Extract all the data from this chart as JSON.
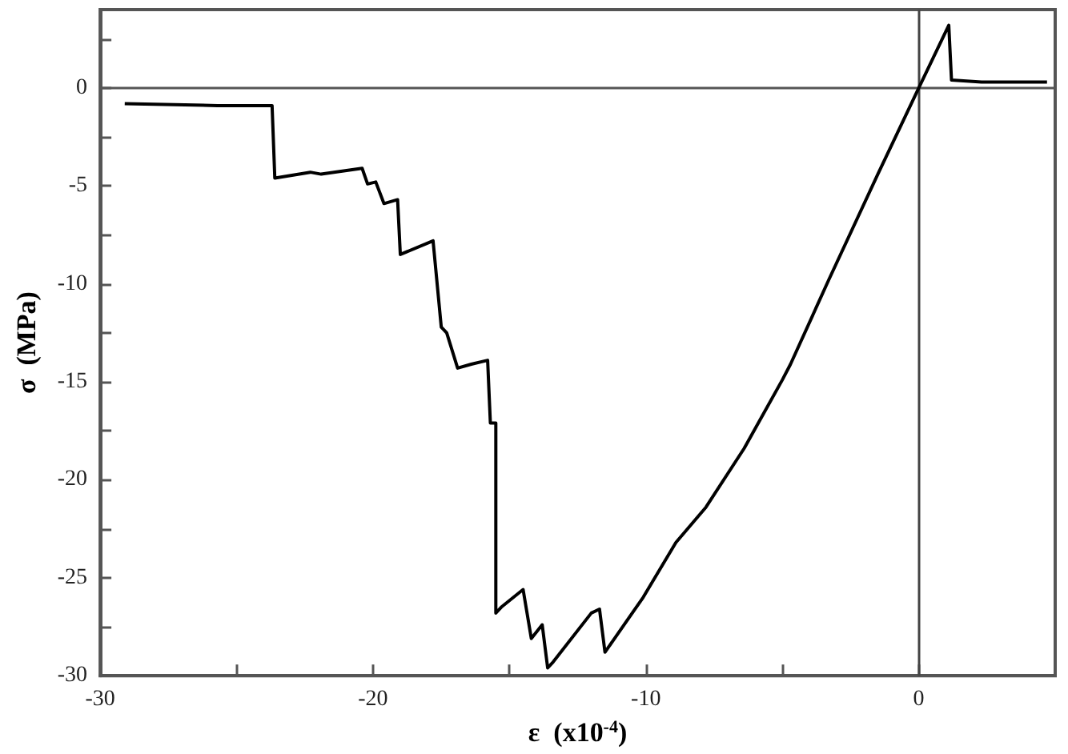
{
  "chart_data": {
    "type": "line",
    "xlabel": "ε  (x10$^{-4}$)",
    "ylabel": "σ  (MPa)",
    "xlim": [
      -30,
      5
    ],
    "xticks": [
      -30,
      {
        "value": -25,
        "label": null
      },
      -20,
      {
        "value": -15,
        "label": null
      },
      -10,
      {
        "value": -5,
        "label": null
      },
      0
    ],
    "ylim": [
      -30,
      4
    ],
    "yticks": [
      -30,
      {
        "value": -27.5,
        "label": null
      },
      -25,
      {
        "value": -22.5,
        "label": null
      },
      -20,
      {
        "value": -17.5,
        "label": null
      },
      -15,
      {
        "value": -12.5,
        "label": null
      },
      -10,
      {
        "value": -7.5,
        "label": null
      },
      -5,
      {
        "value": -2.5,
        "label": null
      },
      0,
      {
        "value": 2.5,
        "label": null
      }
    ],
    "grid": false,
    "marker": "none",
    "line_style": "solid",
    "ref_lines": [
      {
        "axis": "x",
        "value": 0,
        "color": "#444444"
      },
      {
        "axis": "y",
        "value": 0,
        "color": "#555555"
      }
    ],
    "series": [
      {
        "color": "#000000",
        "x": [
          -29.1,
          -25.7,
          -23.7,
          -23.6,
          -22.3,
          -21.9,
          -20.4,
          -20.2,
          -19.9,
          -19.6,
          -19.1,
          -19.0,
          -17.8,
          -17.5,
          -17.3,
          -16.9,
          -16.4,
          -15.8,
          -15.7,
          -15.5,
          -15.5,
          -15.3,
          -14.5,
          -14.2,
          -13.8,
          -13.6,
          -13.4,
          -12.0,
          -11.7,
          -11.5,
          -10.1,
          -8.9,
          -7.8,
          -6.4,
          -5.0,
          -4.7,
          -3.3,
          -1.5,
          0,
          1.1,
          1.2,
          2.3,
          4.7
        ],
        "values": [
          -0.8,
          -0.9,
          -0.9,
          -4.6,
          -4.3,
          -4.4,
          -4.1,
          -4.9,
          -4.8,
          -5.9,
          -5.7,
          -8.5,
          -7.8,
          -12.2,
          -12.5,
          -14.3,
          -14.1,
          -13.9,
          -17.1,
          -17.1,
          -26.8,
          -26.5,
          -25.6,
          -28.1,
          -27.4,
          -29.6,
          -29.3,
          -26.8,
          -26.6,
          -28.8,
          -26.0,
          -23.2,
          -21.4,
          -18.4,
          -14.9,
          -14.1,
          -9.8,
          -4.4,
          0,
          3.2,
          0.4,
          0.3,
          0.3
        ]
      }
    ]
  }
}
